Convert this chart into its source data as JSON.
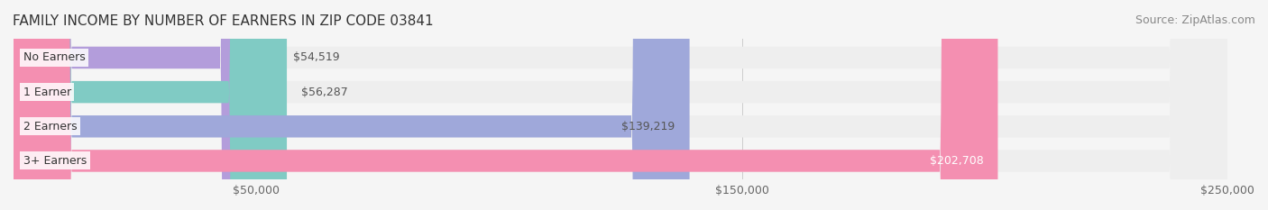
{
  "title": "FAMILY INCOME BY NUMBER OF EARNERS IN ZIP CODE 03841",
  "source": "Source: ZipAtlas.com",
  "categories": [
    "No Earners",
    "1 Earner",
    "2 Earners",
    "3+ Earners"
  ],
  "values": [
    54519,
    56287,
    139219,
    202708
  ],
  "value_labels": [
    "$54,519",
    "$56,287",
    "$139,219",
    "$202,708"
  ],
  "bar_colors": [
    "#b39ddb",
    "#80cbc4",
    "#9fa8da",
    "#f48fb1"
  ],
  "label_colors": [
    "#555555",
    "#555555",
    "#555555",
    "#ffffff"
  ],
  "xlim": [
    0,
    250000
  ],
  "xticks": [
    50000,
    150000,
    250000
  ],
  "xtick_labels": [
    "$50,000",
    "$150,000",
    "$250,000"
  ],
  "background_color": "#f5f5f5",
  "bar_background_color": "#eeeeee",
  "title_fontsize": 11,
  "source_fontsize": 9,
  "label_fontsize": 9,
  "category_fontsize": 9,
  "tick_fontsize": 9
}
